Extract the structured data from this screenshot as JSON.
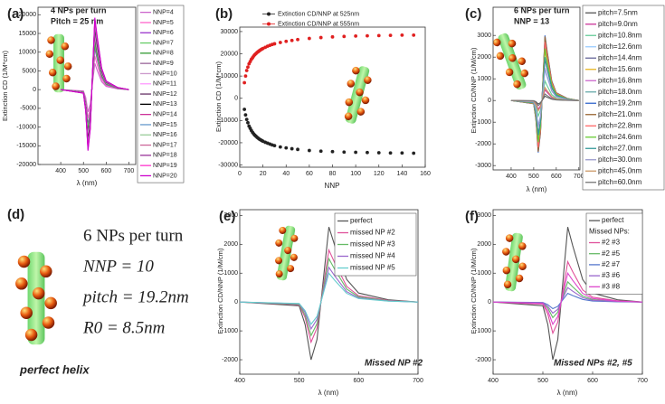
{
  "chart_data": [
    {
      "type": "line",
      "label": "(a)",
      "annotations": [
        "4 NPs per turn",
        "Pitch = 25 nm"
      ],
      "xlabel": "λ (nm)",
      "ylabel": "Extinction CD (1/M*cm)",
      "xlim": [
        300,
        730
      ],
      "xticks": [
        400,
        500,
        600,
        700
      ],
      "ylim": [
        -20000,
        22000
      ],
      "yticks": [
        -20000,
        -15000,
        -10000,
        -5000,
        0,
        5000,
        10000,
        15000,
        20000
      ],
      "x": [
        400,
        500,
        510,
        520,
        530,
        540,
        550,
        560,
        580,
        600,
        650,
        700
      ],
      "series": [
        {
          "name": "NNP=4",
          "color": "#cc66cc",
          "values": [
            0,
            -350,
            -2100,
            -5950,
            -3850,
            1750,
            7000,
            5250,
            2100,
            840,
            210,
            0
          ]
        },
        {
          "name": "NNP=5",
          "color": "#ff66cc",
          "values": [
            0,
            -450,
            -2700,
            -7650,
            -4950,
            2250,
            9000,
            6750,
            2700,
            1080,
            270,
            0
          ]
        },
        {
          "name": "NNP=6",
          "color": "#9933cc",
          "values": [
            0,
            -550,
            -3300,
            -9350,
            -6050,
            2750,
            11000,
            8250,
            3300,
            1320,
            330,
            0
          ]
        },
        {
          "name": "NNP=7",
          "color": "#66cc66",
          "values": [
            0,
            -600,
            -3600,
            -10200,
            -6600,
            3000,
            12000,
            9000,
            3600,
            1440,
            360,
            0
          ]
        },
        {
          "name": "NNP=8",
          "color": "#339933",
          "values": [
            0,
            -650,
            -3900,
            -11050,
            -7150,
            3250,
            13000,
            9750,
            3900,
            1560,
            390,
            0
          ]
        },
        {
          "name": "NNP=9",
          "color": "#996699",
          "values": [
            0,
            -700,
            -4200,
            -11900,
            -7700,
            3500,
            14000,
            10500,
            4200,
            1680,
            420,
            0
          ]
        },
        {
          "name": "NNP=10",
          "color": "#cc99cc",
          "values": [
            0,
            -750,
            -4500,
            -12750,
            -8250,
            3750,
            15000,
            11250,
            4500,
            1800,
            450,
            0
          ]
        },
        {
          "name": "NNP=11",
          "color": "#ff99ff",
          "values": [
            0,
            -775,
            -4650,
            -13175,
            -8525,
            3875,
            15500,
            11625,
            4650,
            1860,
            465,
            0
          ]
        },
        {
          "name": "NNP=12",
          "color": "#663366",
          "values": [
            0,
            -800,
            -4800,
            -13600,
            -8800,
            4000,
            16000,
            12000,
            4800,
            1920,
            480,
            0
          ]
        },
        {
          "name": "NNP=13",
          "color": "#000000",
          "values": [
            0,
            -825,
            -4950,
            -14025,
            -9075,
            4125,
            16500,
            12375,
            4950,
            1980,
            495,
            0
          ]
        },
        {
          "name": "NNP=14",
          "color": "#cc3399",
          "values": [
            0,
            -850,
            -5100,
            -14450,
            -9350,
            4250,
            17000,
            12750,
            5100,
            2040,
            510,
            0
          ]
        },
        {
          "name": "NNP=15",
          "color": "#6699cc",
          "values": [
            0,
            -875,
            -5250,
            -14875,
            -9625,
            4375,
            17500,
            13125,
            5250,
            2100,
            525,
            0
          ]
        },
        {
          "name": "NNP=16",
          "color": "#99cc99",
          "values": [
            0,
            -900,
            -5400,
            -15300,
            -9900,
            4500,
            18000,
            13500,
            5400,
            2160,
            540,
            0
          ]
        },
        {
          "name": "NNP=17",
          "color": "#cc6699",
          "values": [
            0,
            -910,
            -5460,
            -15470,
            -10010,
            4550,
            18200,
            13650,
            5460,
            2184,
            546,
            0
          ]
        },
        {
          "name": "NNP=18",
          "color": "#993399",
          "values": [
            0,
            -925,
            -5550,
            -15725,
            -10175,
            4625,
            18500,
            13875,
            5550,
            2220,
            555,
            0
          ]
        },
        {
          "name": "NNP=19",
          "color": "#ff33cc",
          "values": [
            0,
            -940,
            -5640,
            -15980,
            -10340,
            4700,
            18800,
            14100,
            5640,
            2256,
            564,
            0
          ]
        },
        {
          "name": "NNP=20",
          "color": "#cc00cc",
          "values": [
            0,
            -960,
            -5760,
            -16320,
            -10560,
            4800,
            19200,
            14400,
            5760,
            2304,
            576,
            0
          ]
        }
      ]
    },
    {
      "type": "scatter",
      "label": "(b)",
      "annotations": [],
      "xlabel": "NNP",
      "ylabel": "Extinction CD (1/M*cm)",
      "xlim": [
        0,
        160
      ],
      "xticks": [
        0,
        20,
        40,
        60,
        80,
        100,
        120,
        140,
        160
      ],
      "ylim": [
        -31000,
        32000
      ],
      "yticks": [
        -30000,
        -20000,
        -10000,
        0,
        10000,
        20000,
        30000
      ],
      "x": [
        4,
        5,
        6,
        7,
        8,
        9,
        10,
        11,
        12,
        13,
        14,
        15,
        16,
        17,
        18,
        19,
        20,
        22,
        24,
        26,
        28,
        30,
        35,
        40,
        45,
        50,
        60,
        70,
        80,
        90,
        100,
        110,
        120,
        130,
        140,
        150
      ],
      "series": [
        {
          "name": "Extinction CD/NNP at 525nm",
          "color": "#222222",
          "values": [
            -5000,
            -7500,
            -9500,
            -11000,
            -12500,
            -13500,
            -14500,
            -15300,
            -16000,
            -16600,
            -17100,
            -17600,
            -18000,
            -18400,
            -18700,
            -19000,
            -19300,
            -19800,
            -20200,
            -20600,
            -21000,
            -21300,
            -21900,
            -22300,
            -22700,
            -23000,
            -23500,
            -23800,
            -24000,
            -24200,
            -24300,
            -24400,
            -24500,
            -24600,
            -24600,
            -24700
          ]
        },
        {
          "name": "Extinction CD/NNP at 555nm",
          "color": "#e02020",
          "values": [
            7000,
            10000,
            12500,
            14000,
            15500,
            16500,
            17500,
            18200,
            19000,
            19600,
            20100,
            20600,
            21000,
            21400,
            21800,
            22100,
            22400,
            22900,
            23400,
            23800,
            24200,
            24500,
            25100,
            25600,
            26000,
            26400,
            26900,
            27300,
            27600,
            27800,
            28000,
            28100,
            28200,
            28300,
            28400,
            28400
          ]
        }
      ]
    },
    {
      "type": "line",
      "label": "(c)",
      "annotations": [
        "6 NPs per turn",
        "NNP = 13"
      ],
      "xlabel": "λ (nm)",
      "ylabel": "Extinction CD/NNP (1/M/cm)",
      "xlim": [
        320,
        705
      ],
      "xticks": [
        400,
        500,
        600,
        700
      ],
      "ylim": [
        -3200,
        4300
      ],
      "yticks": [
        -3000,
        -2000,
        -1000,
        0,
        1000,
        2000,
        3000
      ],
      "x": [
        400,
        500,
        510,
        520,
        530,
        540,
        550,
        560,
        580,
        600,
        650,
        700
      ],
      "series": [
        {
          "name": "pitch=7.5nm",
          "color": "#555555",
          "values": [
            0,
            -10,
            -60,
            -160,
            -100,
            50,
            200,
            150,
            60,
            24,
            6,
            0
          ]
        },
        {
          "name": "pitch=9.0nm",
          "color": "#cc3399",
          "values": [
            0,
            -25,
            -150,
            -400,
            -250,
            125,
            500,
            375,
            150,
            60,
            15,
            0
          ]
        },
        {
          "name": "pitch=10.8nm",
          "color": "#66cc99",
          "values": [
            0,
            -45,
            -270,
            -720,
            -450,
            225,
            900,
            675,
            270,
            108,
            27,
            0
          ]
        },
        {
          "name": "pitch=12.6nm",
          "color": "#99ccff",
          "values": [
            0,
            -70,
            -420,
            -1120,
            -700,
            350,
            1400,
            1050,
            420,
            168,
            42,
            0
          ]
        },
        {
          "name": "pitch=14.4nm",
          "color": "#666699",
          "values": [
            0,
            -95,
            -570,
            -1520,
            -950,
            475,
            1900,
            1425,
            570,
            228,
            57,
            0
          ]
        },
        {
          "name": "pitch=15.6nm",
          "color": "#e6b422",
          "values": [
            0,
            -115,
            -690,
            -1840,
            -1150,
            575,
            2300,
            1725,
            690,
            276,
            69,
            0
          ]
        },
        {
          "name": "pitch=16.8nm",
          "color": "#cc66cc",
          "values": [
            0,
            -130,
            -780,
            -2080,
            -1300,
            650,
            2600,
            1950,
            780,
            312,
            78,
            0
          ]
        },
        {
          "name": "pitch=18.0nm",
          "color": "#66aaaa",
          "values": [
            0,
            -143,
            -855,
            -2280,
            -1425,
            713,
            2850,
            2138,
            855,
            342,
            86,
            0
          ]
        },
        {
          "name": "pitch=19.2nm",
          "color": "#3366cc",
          "values": [
            0,
            -150,
            -900,
            -2400,
            -1500,
            750,
            3000,
            2250,
            900,
            360,
            90,
            0
          ]
        },
        {
          "name": "pitch=21.0nm",
          "color": "#996633",
          "values": [
            0,
            -148,
            -885,
            -2360,
            -1475,
            738,
            2950,
            2213,
            885,
            354,
            89,
            0
          ]
        },
        {
          "name": "pitch=22.8nm",
          "color": "#ff6666",
          "values": [
            0,
            -135,
            -810,
            -2160,
            -1350,
            675,
            2700,
            2025,
            810,
            324,
            81,
            0
          ]
        },
        {
          "name": "pitch=24.6nm",
          "color": "#66cc33",
          "values": [
            0,
            -120,
            -720,
            -1920,
            -1200,
            600,
            2400,
            1800,
            720,
            288,
            72,
            0
          ]
        },
        {
          "name": "pitch=27.0nm",
          "color": "#339999",
          "values": [
            0,
            -100,
            -600,
            -1600,
            -1000,
            500,
            2000,
            1500,
            600,
            240,
            60,
            0
          ]
        },
        {
          "name": "pitch=30.0nm",
          "color": "#9999cc",
          "values": [
            0,
            -75,
            -450,
            -1200,
            -750,
            375,
            1500,
            1125,
            450,
            180,
            45,
            0
          ]
        },
        {
          "name": "pitch=45.0nm",
          "color": "#cc9966",
          "values": [
            0,
            -30,
            -180,
            -480,
            -300,
            150,
            600,
            450,
            180,
            72,
            18,
            0
          ]
        },
        {
          "name": "pitch=60.0nm",
          "color": "#777777",
          "values": [
            0,
            -15,
            -90,
            -240,
            -150,
            75,
            300,
            225,
            90,
            36,
            9,
            0
          ]
        }
      ]
    },
    {
      "type": "line",
      "label": "(e)",
      "annotations": [
        "Missed NP #2"
      ],
      "xlabel": "λ (nm)",
      "ylabel": "Extinction CD/NNP (1/M/cm)",
      "xlim": [
        400,
        700
      ],
      "xticks": [
        400,
        500,
        600,
        700
      ],
      "ylim": [
        -2500,
        3200
      ],
      "yticks": [
        -2000,
        -1000,
        0,
        1000,
        2000,
        3000
      ],
      "x": [
        400,
        500,
        510,
        520,
        530,
        540,
        550,
        560,
        580,
        600,
        650,
        700
      ],
      "series": [
        {
          "name": "perfect",
          "color": "#555555",
          "values": [
            0,
            -130,
            -780,
            -2000,
            -1300,
            650,
            2600,
            1950,
            780,
            312,
            78,
            0
          ]
        },
        {
          "name": "missed NP #2",
          "color": "#e0509a",
          "values": [
            0,
            -90,
            -540,
            -1390,
            -900,
            450,
            1800,
            1350,
            540,
            216,
            54,
            0
          ]
        },
        {
          "name": "missed NP #3",
          "color": "#66bb66",
          "values": [
            0,
            -75,
            -450,
            -1160,
            -750,
            375,
            1500,
            1125,
            450,
            180,
            45,
            0
          ]
        },
        {
          "name": "missed NP #4",
          "color": "#9966cc",
          "values": [
            0,
            -60,
            -360,
            -930,
            -600,
            300,
            1200,
            900,
            360,
            144,
            36,
            0
          ]
        },
        {
          "name": "missed NP #5",
          "color": "#66cccc",
          "values": [
            0,
            -50,
            -300,
            -770,
            -500,
            250,
            1000,
            750,
            300,
            120,
            30,
            0
          ]
        }
      ]
    },
    {
      "type": "line",
      "label": "(f)",
      "annotations": [
        "Missed NPs #2, #5"
      ],
      "legend_title": "Missed NPs:",
      "xlabel": "λ (nm)",
      "ylabel": "Extinction CD/NNP (1/M/cm)",
      "xlim": [
        400,
        700
      ],
      "xticks": [
        400,
        500,
        600,
        700
      ],
      "ylim": [
        -2500,
        3200
      ],
      "yticks": [
        -2000,
        -1000,
        0,
        1000,
        2000,
        3000
      ],
      "x": [
        400,
        500,
        510,
        520,
        530,
        540,
        550,
        560,
        580,
        600,
        650,
        700
      ],
      "series": [
        {
          "name": "perfect",
          "color": "#555555",
          "values": [
            0,
            -130,
            -780,
            -2000,
            -1300,
            650,
            2600,
            1950,
            780,
            312,
            78,
            0
          ]
        },
        {
          "name": "#2 #3",
          "color": "#e0509a",
          "values": [
            0,
            -70,
            -420,
            -1080,
            -700,
            350,
            1400,
            1050,
            420,
            168,
            42,
            0
          ]
        },
        {
          "name": "#2 #5",
          "color": "#66bb66",
          "values": [
            0,
            -35,
            -210,
            -540,
            -350,
            175,
            700,
            525,
            210,
            84,
            21,
            0
          ]
        },
        {
          "name": "#2 #7",
          "color": "#5577cc",
          "values": [
            0,
            -15,
            -90,
            -230,
            -150,
            75,
            300,
            225,
            90,
            36,
            9,
            0
          ]
        },
        {
          "name": "#3 #6",
          "color": "#9966cc",
          "values": [
            0,
            -25,
            -150,
            -385,
            -250,
            125,
            500,
            375,
            150,
            60,
            15,
            0
          ]
        },
        {
          "name": "#3 #8",
          "color": "#dd44cc",
          "values": [
            0,
            -50,
            -300,
            -770,
            -500,
            250,
            1000,
            750,
            300,
            120,
            30,
            0
          ]
        }
      ]
    }
  ],
  "panel_d": {
    "label": "(d)",
    "lines": [
      "6 NPs per turn",
      "NNP = 10",
      "pitch = 19.2nm",
      "R0 = 8.5nm"
    ],
    "caption": "perfect helix"
  }
}
